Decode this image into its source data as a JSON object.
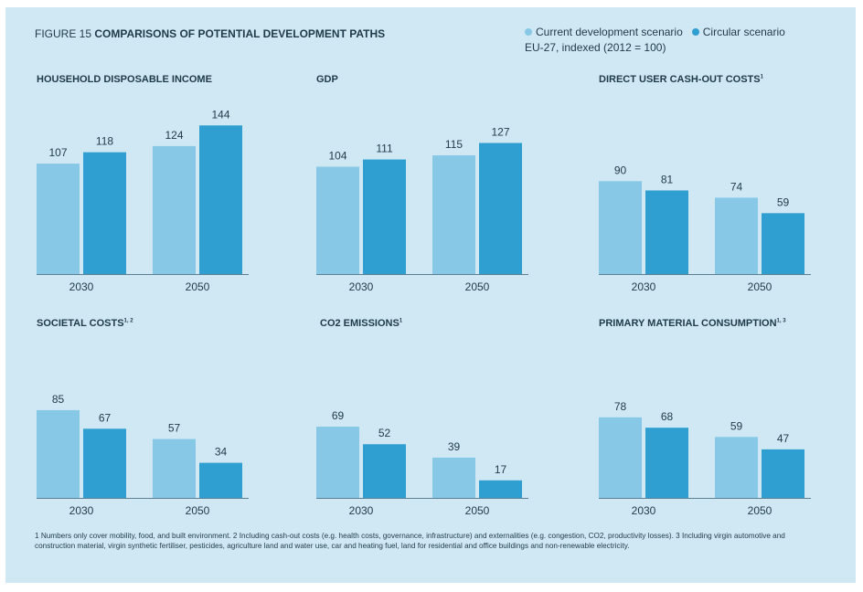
{
  "figure": {
    "number": "FIGURE 15",
    "title": "COMPARISONS OF POTENTIAL DEVELOPMENT PATHS",
    "legend": {
      "current": "Current development scenario",
      "circular": "Circular scenario",
      "note": "EU-27, indexed (2012 = 100)"
    },
    "colors": {
      "current": "#86c8e6",
      "circular": "#2f9fd1",
      "axis": "#5b7f94",
      "text": "#1f3a4a"
    },
    "footnote": "1 Numbers only cover mobility, food, and built environment. 2 Including cash-out costs (e.g. health costs, governance, infrastructure) and externalities (e.g. congestion, CO2, productivity losses). 3 Including virgin automotive and construction material, virgin synthetic fertiliser, pesticides, agriculture land and water use, car and heating fuel, land for residential and office buildings and non-renewable electricity."
  },
  "chart_data": [
    {
      "type": "bar",
      "title": "HOUSEHOLD DISPOSABLE INCOME",
      "title_sup": "",
      "categories": [
        "2030",
        "2050"
      ],
      "series": [
        {
          "name": "Current development scenario",
          "values": [
            107,
            124
          ]
        },
        {
          "name": "Circular scenario",
          "values": [
            118,
            144
          ]
        }
      ]
    },
    {
      "type": "bar",
      "title": "GDP",
      "title_sup": "",
      "categories": [
        "2030",
        "2050"
      ],
      "series": [
        {
          "name": "Current development scenario",
          "values": [
            104,
            115
          ]
        },
        {
          "name": "Circular scenario",
          "values": [
            111,
            127
          ]
        }
      ]
    },
    {
      "type": "bar",
      "title": "DIRECT USER CASH-OUT COSTS",
      "title_sup": "1",
      "categories": [
        "2030",
        "2050"
      ],
      "series": [
        {
          "name": "Current development scenario",
          "values": [
            90,
            74
          ]
        },
        {
          "name": "Circular scenario",
          "values": [
            81,
            59
          ]
        }
      ]
    },
    {
      "type": "bar",
      "title": "SOCIETAL COSTS",
      "title_sup": "1, 2",
      "categories": [
        "2030",
        "2050"
      ],
      "series": [
        {
          "name": "Current development scenario",
          "values": [
            85,
            57
          ]
        },
        {
          "name": "Circular scenario",
          "values": [
            67,
            34
          ]
        }
      ]
    },
    {
      "type": "bar",
      "title": "CO2 EMISSIONS",
      "title_sup": "1",
      "categories": [
        "2030",
        "2050"
      ],
      "series": [
        {
          "name": "Current development scenario",
          "values": [
            69,
            39
          ]
        },
        {
          "name": "Circular scenario",
          "values": [
            52,
            17
          ]
        }
      ]
    },
    {
      "type": "bar",
      "title": "PRIMARY MATERIAL CONSUMPTION",
      "title_sup": "1, 3",
      "categories": [
        "2030",
        "2050"
      ],
      "series": [
        {
          "name": "Current development scenario",
          "values": [
            78,
            59
          ]
        },
        {
          "name": "Circular scenario",
          "values": [
            68,
            47
          ]
        }
      ]
    }
  ]
}
